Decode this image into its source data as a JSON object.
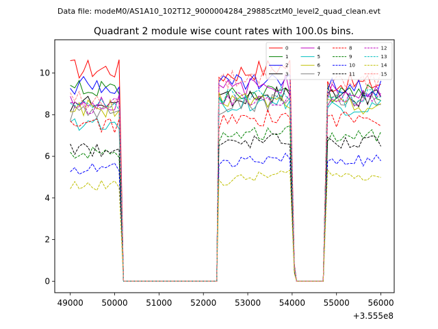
{
  "figure": {
    "suptitle": "Data file: modeM0/AS1A10_102T12_9000004284_29885cztM0_level2_quad_clean.evt"
  },
  "chart_data": {
    "type": "line",
    "title": "Quadrant 2 module wise count rates with 100.0s bins.",
    "xlabel": "",
    "ylabel": "",
    "x_offset_label": "+3.555e8",
    "xlim": [
      48650,
      56300
    ],
    "ylim": [
      -0.55,
      11.6
    ],
    "x_ticks": [
      49000,
      50000,
      51000,
      52000,
      53000,
      54000,
      55000,
      56000
    ],
    "x_tick_labels": [
      "49000",
      "50000",
      "51000",
      "52000",
      "53000",
      "54000",
      "55000",
      "56000"
    ],
    "y_ticks": [
      0,
      2,
      4,
      6,
      8,
      10
    ],
    "y_tick_labels": [
      "0",
      "2",
      "4",
      "6",
      "8",
      "10"
    ],
    "grid": false,
    "legend": {
      "placement": "top-right",
      "columns": 4
    },
    "segments": [
      {
        "x_start": 49000,
        "x_end": 50100,
        "step": 100
      },
      {
        "x_start": 50200,
        "x_end": 50300,
        "step": 100
      },
      {
        "x_start": 50300,
        "x_end": 52300,
        "step": 200
      },
      {
        "x_start": 52350,
        "x_end": 53950,
        "step": 100
      },
      {
        "x_start": 54050,
        "x_end": 54050,
        "step": 100
      },
      {
        "x_start": 54100,
        "x_end": 54700,
        "step": 200
      },
      {
        "x_start": 54800,
        "x_end": 56000,
        "step": 100
      }
    ],
    "series": [
      {
        "name": "0",
        "color": "#ff0000",
        "dash": "solid",
        "levels": [
          10.2,
          9.9,
          10.4,
          9.5
        ]
      },
      {
        "name": "1",
        "color": "#008000",
        "dash": "solid",
        "levels": [
          9.3,
          8.9,
          9.3,
          9.0
        ]
      },
      {
        "name": "2",
        "color": "#0000ff",
        "dash": "solid",
        "levels": [
          9.4,
          9.5,
          9.6,
          9.3
        ]
      },
      {
        "name": "3",
        "color": "#000000",
        "dash": "solid",
        "levels": [
          8.5,
          8.8,
          9.0,
          8.8
        ]
      },
      {
        "name": "4",
        "color": "#bf00bf",
        "dash": "solid",
        "levels": [
          8.6,
          9.2,
          9.5,
          9.1
        ]
      },
      {
        "name": "5",
        "color": "#00bfbf",
        "dash": "solid",
        "levels": [
          7.6,
          8.5,
          8.6,
          8.3
        ]
      },
      {
        "name": "6",
        "color": "#bfbf00",
        "dash": "solid",
        "levels": [
          8.3,
          8.7,
          8.6,
          8.4
        ]
      },
      {
        "name": "7",
        "color": "#808080",
        "dash": "solid",
        "levels": [
          8.1,
          8.4,
          8.6,
          8.6
        ]
      },
      {
        "name": "8",
        "color": "#ff0000",
        "dash": "dashed",
        "levels": [
          7.5,
          7.6,
          8.0,
          7.8
        ]
      },
      {
        "name": "9",
        "color": "#008000",
        "dash": "dashed",
        "levels": [
          6.2,
          6.9,
          7.2,
          7.0
        ]
      },
      {
        "name": "10",
        "color": "#0000ff",
        "dash": "dashed",
        "levels": [
          5.4,
          5.7,
          5.9,
          5.8
        ]
      },
      {
        "name": "11",
        "color": "#000000",
        "dash": "dashed",
        "levels": [
          6.3,
          6.6,
          6.9,
          6.7
        ]
      },
      {
        "name": "12",
        "color": "#bf00bf",
        "dash": "dashed",
        "levels": [
          8.4,
          8.6,
          8.9,
          8.7
        ]
      },
      {
        "name": "13",
        "color": "#00bfbf",
        "dash": "dashed",
        "levels": [
          8.6,
          8.8,
          9.0,
          8.8
        ]
      },
      {
        "name": "14",
        "color": "#bfbf00",
        "dash": "dashed",
        "levels": [
          4.6,
          4.8,
          5.2,
          5.1
        ]
      },
      {
        "name": "15",
        "color": "#ff8080",
        "dash": "dashed",
        "levels": [
          8.7,
          9.5,
          10.2,
          9.6
        ]
      }
    ]
  }
}
